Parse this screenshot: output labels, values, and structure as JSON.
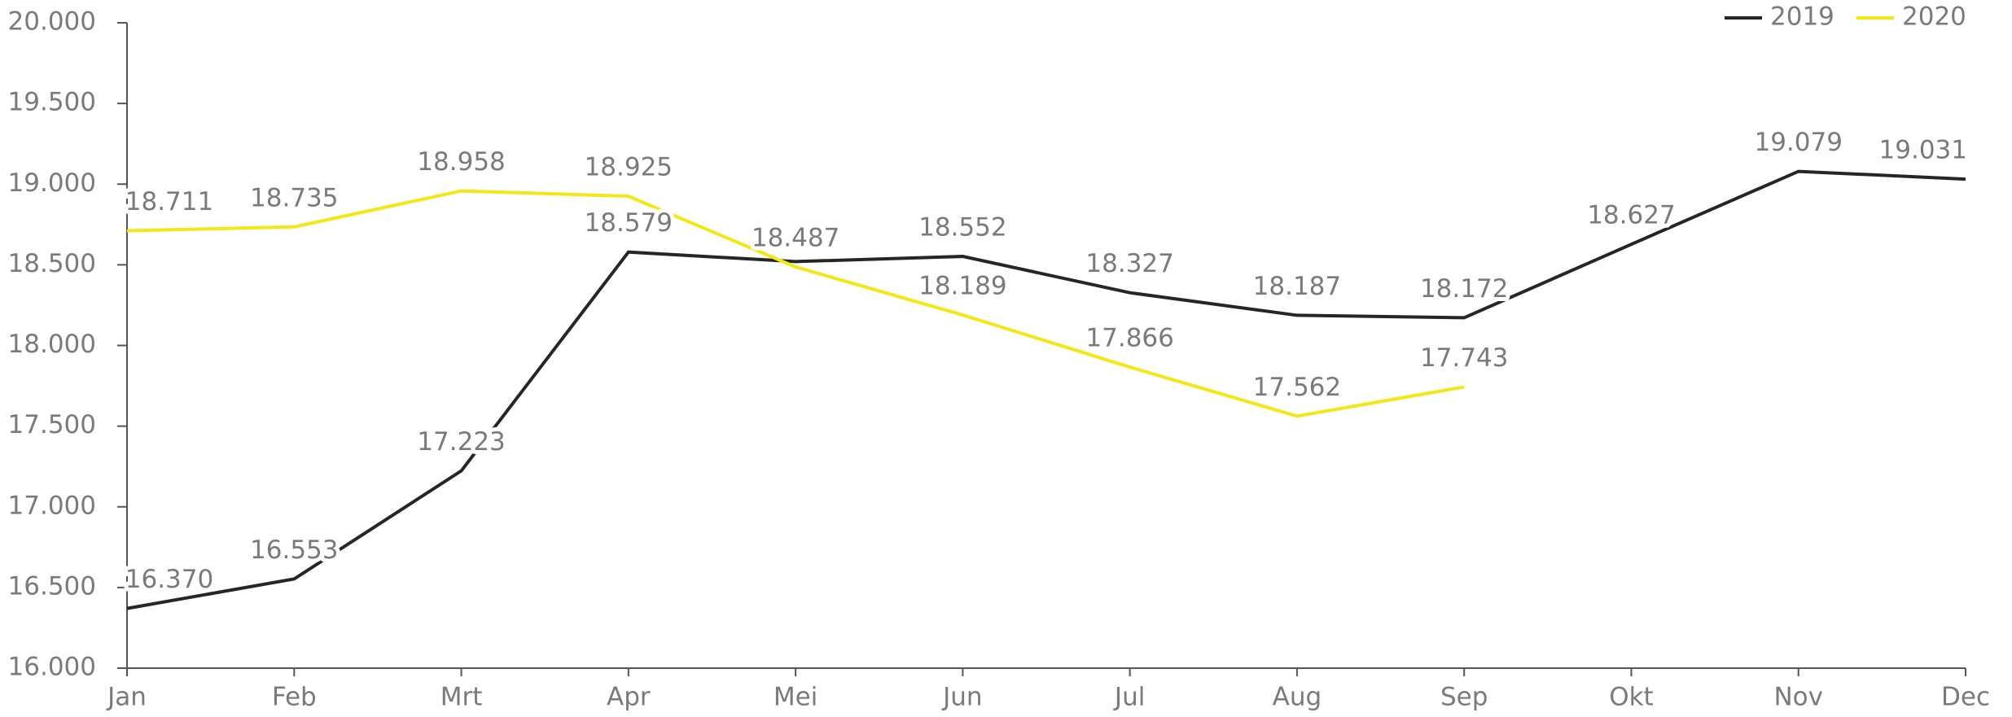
{
  "chart_data": {
    "type": "line",
    "categories": [
      "Jan",
      "Feb",
      "Mrt",
      "Apr",
      "Mei",
      "Jun",
      "Jul",
      "Aug",
      "Sep",
      "Okt",
      "Nov",
      "Dec"
    ],
    "series": [
      {
        "name": "2019",
        "color": "#262626",
        "values": [
          16370,
          16553,
          17223,
          18579,
          18520,
          18552,
          18327,
          18187,
          18172,
          18627,
          19079,
          19031
        ],
        "value_labels": [
          "16.370",
          "16.553",
          "17.223",
          "18.579",
          null,
          "18.552",
          "18.327",
          "18.187",
          "18.172",
          "18.627",
          "19.079",
          "19.031"
        ]
      },
      {
        "name": "2020",
        "color": "#f2e816",
        "values": [
          18711,
          18735,
          18958,
          18925,
          18487,
          18189,
          17866,
          17562,
          17743,
          null,
          null,
          null
        ],
        "value_labels": [
          "18.711",
          "18.735",
          "18.958",
          "18.925",
          "18.487",
          "18.189",
          "17.866",
          "17.562",
          "17.743",
          null,
          null,
          null
        ]
      }
    ],
    "ylim": [
      16000,
      20000
    ],
    "yticks": [
      {
        "value": 16000,
        "label": "16.000"
      },
      {
        "value": 16500,
        "label": "16.500"
      },
      {
        "value": 17000,
        "label": "17.000"
      },
      {
        "value": 17500,
        "label": "17.500"
      },
      {
        "value": 18000,
        "label": "18.000"
      },
      {
        "value": 18500,
        "label": "18.500"
      },
      {
        "value": 19000,
        "label": "19.000"
      },
      {
        "value": 19500,
        "label": "19.500"
      },
      {
        "value": 20000,
        "label": "20.000"
      }
    ],
    "legend": "top-right"
  }
}
